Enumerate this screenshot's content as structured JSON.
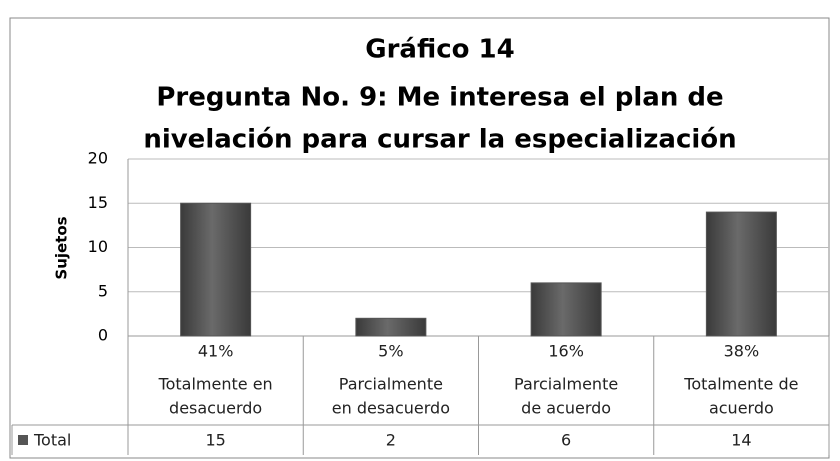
{
  "chart_data": {
    "type": "bar",
    "title": [
      "Gráfico 14",
      "Pregunta No. 9: Me interesa el plan de",
      "nivelación para cursar la especialización"
    ],
    "y_label": "Sujetos",
    "categories": [
      [
        "Totalmente en",
        "desacuerdo"
      ],
      [
        "Parcialmente",
        "en desacuerdo"
      ],
      [
        "Parcialmente",
        "de acuerdo"
      ],
      [
        "Totalmente de",
        "acuerdo"
      ]
    ],
    "share_labels": [
      "41%",
      "5%",
      "16%",
      "38%"
    ],
    "series": [
      {
        "name": "Total",
        "color": "#555555",
        "values": [
          15,
          2,
          6,
          14
        ]
      }
    ],
    "ylim": [
      0,
      20
    ],
    "yticks": [
      0,
      5,
      10,
      15,
      20
    ],
    "grid": true
  }
}
